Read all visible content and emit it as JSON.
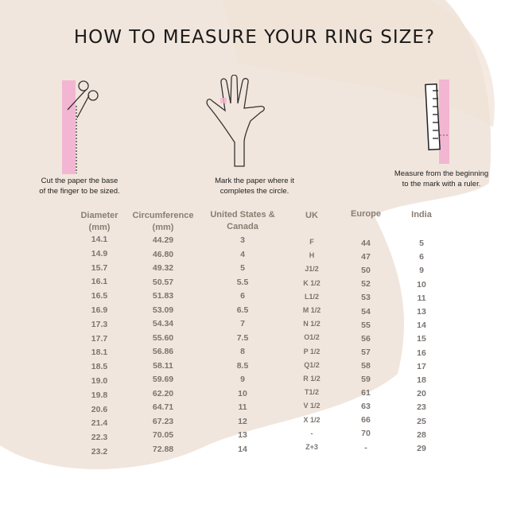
{
  "title": "HOW TO MEASURE YOUR RING SIZE?",
  "steps": [
    {
      "icon": "scissors-icon",
      "caption_1": "Cut the paper the base",
      "caption_2": "of the finger to be sized."
    },
    {
      "icon": "hand-icon",
      "caption_1": "Mark the paper where it",
      "caption_2": "completes the circle."
    },
    {
      "icon": "ruler-icon",
      "caption_1": "Measure from the beginning",
      "caption_2": "to the mark with a ruler."
    }
  ],
  "colors": {
    "accent": "#f2b6d2",
    "background": "#f1e6dd",
    "text": "#7a7470"
  },
  "table": {
    "headers": [
      {
        "line1": "Diameter",
        "line2": "(mm)"
      },
      {
        "line1": "Circumference",
        "line2": "(mm)"
      },
      {
        "line1": "United States &",
        "line2": "Canada"
      },
      {
        "line1": "UK",
        "line2": ""
      },
      {
        "line1": "Europe",
        "line2": ""
      },
      {
        "line1": "India",
        "line2": ""
      }
    ],
    "diameter": [
      "14.1",
      "14.9",
      "15.7",
      "16.1",
      "16.5",
      "16.9",
      "17.3",
      "17.7",
      "18.1",
      "18.5",
      "19.0",
      "19.8",
      "20.6",
      "21.4",
      "22.3",
      "23.2"
    ],
    "circumference": [
      "44.29",
      "46.80",
      "49.32",
      "50.57",
      "51.83",
      "53.09",
      "54.34",
      "55.60",
      "56.86",
      "58.11",
      "59.69",
      "62.20",
      "64.71",
      "67.23",
      "70.05",
      "72.88"
    ],
    "us_canada": [
      "3",
      "4",
      "5",
      "5.5",
      "6",
      "6.5",
      "7",
      "7.5",
      "8",
      "8.5",
      "9",
      "10",
      "11",
      "12",
      "13",
      "14"
    ],
    "uk": [
      "F",
      "H",
      "J1/2",
      "K 1/2",
      "L1/2",
      "M 1/2",
      "N 1/2",
      "O1/2",
      "P 1/2",
      "Q1/2",
      "R 1/2",
      "T1/2",
      "V 1/2",
      "X 1/2",
      "-",
      "Z+3"
    ],
    "europe": [
      "44",
      "47",
      "50",
      "52",
      "53",
      "54",
      "55",
      "56",
      "57",
      "58",
      "59",
      "61",
      "63",
      "66",
      "70",
      "-"
    ],
    "india": [
      "5",
      "6",
      "9",
      "10",
      "11",
      "13",
      "14",
      "15",
      "16",
      "17",
      "18",
      "20",
      "23",
      "25",
      "28",
      "29"
    ]
  }
}
